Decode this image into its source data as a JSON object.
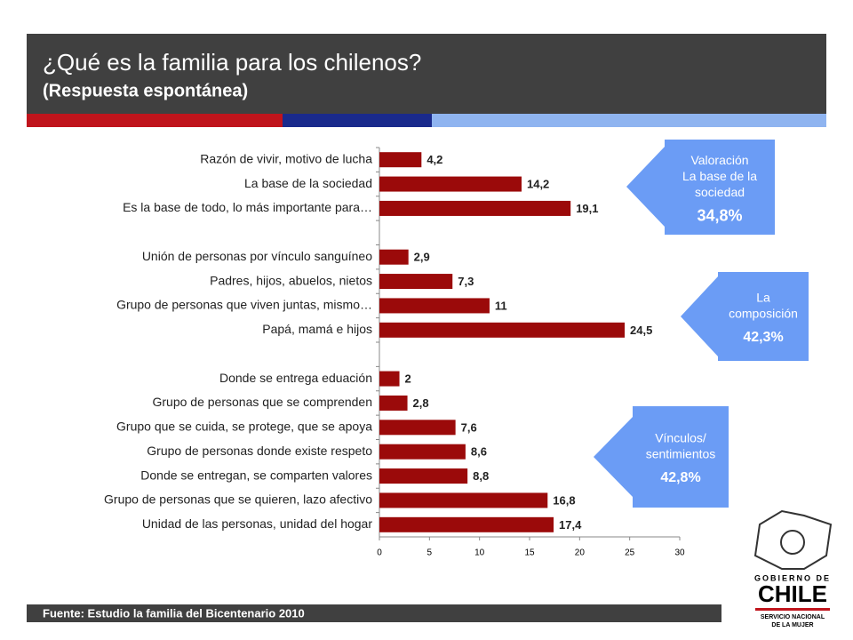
{
  "header": {
    "title": "¿Qué es la familia para los chilenos?",
    "subtitle": "(Respuesta espontánea)"
  },
  "chart_data": {
    "type": "bar",
    "orientation": "horizontal",
    "color": "#9b0a0a",
    "categories": [
      "Razón de vivir, motivo de lucha",
      "La base de la sociedad",
      "Es la base de todo, lo más importante para…",
      null,
      "Unión de personas por vínculo sanguíneo",
      "Padres, hijos, abuelos, nietos",
      "Grupo de personas que viven juntas, mismo…",
      "Papá, mamá e hijos",
      null,
      "Donde se entrega eduación",
      "Grupo de personas que se comprenden",
      "Grupo que se cuida, se protege, que se apoya",
      "Grupo de personas donde existe respeto",
      "Donde se entregan, se comparten valores",
      "Grupo de personas que se quieren, lazo afectivo",
      "Unidad de las personas, unidad del hogar"
    ],
    "values": [
      4.2,
      14.2,
      19.1,
      null,
      2.9,
      7.3,
      11,
      24.5,
      null,
      2,
      2.8,
      7.6,
      8.6,
      8.8,
      16.8,
      17.4
    ],
    "value_labels": [
      "4,2",
      "14,2",
      "19,1",
      null,
      "2,9",
      "7,3",
      "11",
      "24,5",
      null,
      "2",
      "2,8",
      "7,6",
      "8,6",
      "8,8",
      "16,8",
      "17,4"
    ],
    "xlim": [
      0,
      30
    ],
    "xticks": [
      0,
      5,
      10,
      15,
      20,
      25,
      30
    ]
  },
  "callouts": [
    {
      "lines": [
        "Valoración",
        "La base de la",
        "sociedad"
      ],
      "value": "34,8%"
    },
    {
      "lines": [
        "La",
        "composición"
      ],
      "value": "42,3%"
    },
    {
      "lines": [
        "Vínculos/",
        "sentimientos"
      ],
      "value": "42,8%"
    }
  ],
  "footer": "Fuente: Estudio la familia del Bicentenario 2010",
  "logo": {
    "lines": [
      "GOBIERNO DE",
      "CHILE",
      "SERVICIO NACIONAL",
      "DE LA MUJER"
    ]
  }
}
